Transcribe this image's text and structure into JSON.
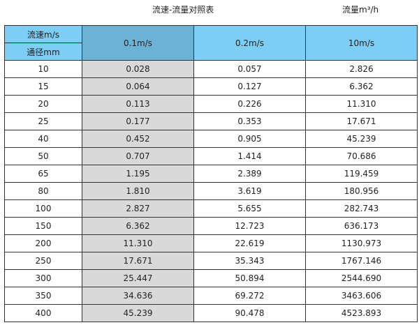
{
  "title": "流速-流量对照表",
  "unit_label": "流量m³/h",
  "header": {
    "velocity_label": "流速m/s",
    "diameter_label": "通径mm",
    "columns": [
      "0.1m/s",
      "0.2m/s",
      "10m/s"
    ]
  },
  "colors": {
    "header": "#7dcdf4",
    "header_selected": "#6cb2d5",
    "highlight_column": "#d9d9d9"
  },
  "rows": [
    [
      "10",
      "0.028",
      "0.057",
      "2.826"
    ],
    [
      "15",
      "0.064",
      "0.127",
      "6.362"
    ],
    [
      "20",
      "0.113",
      "0.226",
      "11.310"
    ],
    [
      "25",
      "0.177",
      "0.353",
      "17.671"
    ],
    [
      "40",
      "0.452",
      "0.905",
      "45.239"
    ],
    [
      "50",
      "0.707",
      "1.414",
      "70.686"
    ],
    [
      "65",
      "1.195",
      "2.389",
      "119.459"
    ],
    [
      "80",
      "1.810",
      "3.619",
      "180.956"
    ],
    [
      "100",
      "2.827",
      "5.655",
      "282.743"
    ],
    [
      "150",
      "6.362",
      "12.723",
      "636.173"
    ],
    [
      "200",
      "11.310",
      "22.619",
      "1130.973"
    ],
    [
      "250",
      "17.671",
      "35.343",
      "1767.146"
    ],
    [
      "300",
      "25.447",
      "50.894",
      "2544.690"
    ],
    [
      "350",
      "34.636",
      "69.272",
      "3463.606"
    ],
    [
      "400",
      "45.239",
      "90.478",
      "4523.893"
    ]
  ]
}
